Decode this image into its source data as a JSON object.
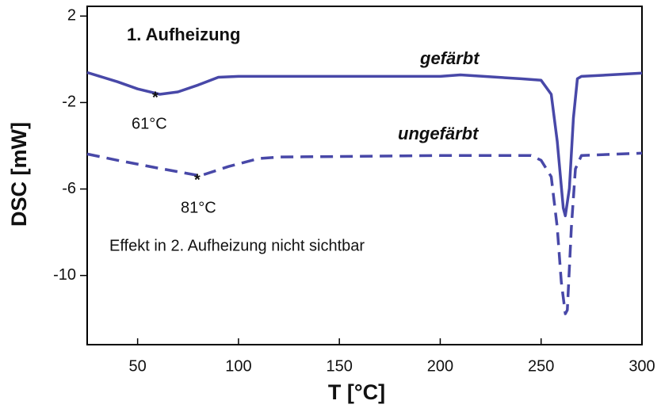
{
  "chart_data": {
    "type": "line",
    "xlabel": "T [°C]",
    "ylabel": "DSC [mW]",
    "xlim": [
      25,
      300
    ],
    "xticks": [
      50,
      100,
      150,
      200,
      250,
      300
    ],
    "ylim": [
      -13.2,
      2.45
    ],
    "yticks": [
      2,
      -2,
      -6,
      -10
    ],
    "grid": false,
    "series": [
      {
        "name": "gefärbt",
        "color": "#4848a8",
        "line_style": "solid",
        "x": [
          25,
          40,
          50,
          61,
          70,
          80,
          90,
          100,
          150,
          200,
          210,
          240,
          250,
          255,
          258,
          261,
          262,
          264,
          266,
          268,
          270,
          300
        ],
        "values": [
          -0.61,
          -1.04,
          -1.37,
          -1.62,
          -1.51,
          -1.19,
          -0.83,
          -0.79,
          -0.79,
          -0.79,
          -0.72,
          -0.9,
          -0.97,
          -1.62,
          -3.8,
          -6.88,
          -7.24,
          -5.97,
          -2.71,
          -0.9,
          -0.79,
          -0.64
        ]
      },
      {
        "name": "ungefärbt",
        "color": "#4848a8",
        "line_style": "dashed",
        "x": [
          25,
          40,
          60,
          81,
          95,
          110,
          120,
          200,
          245,
          250,
          255,
          258,
          260,
          262,
          263,
          265,
          267,
          270,
          300
        ],
        "values": [
          -4.38,
          -4.67,
          -5.03,
          -5.39,
          -4.96,
          -4.59,
          -4.52,
          -4.45,
          -4.45,
          -4.67,
          -5.43,
          -7.78,
          -10.3,
          -11.77,
          -11.6,
          -7.78,
          -5.07,
          -4.45,
          -4.34
        ]
      }
    ],
    "annotations": [
      "1. Aufheizung",
      "*",
      "61°C",
      "*",
      "81°C",
      "Effekt in 2. Aufheizung nicht sichtbar"
    ]
  }
}
